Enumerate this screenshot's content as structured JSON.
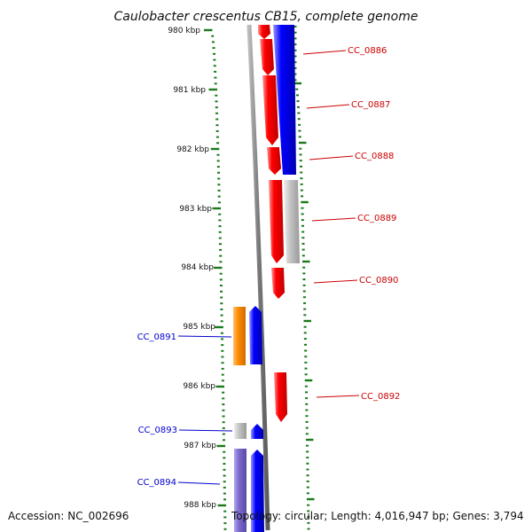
{
  "title": "Caulobacter crescentus CB15, complete genome",
  "footer": {
    "accession": "Accession: NC_002696",
    "summary": "Topology: circular; Length: 4,016,947 bp; Genes: 3,794"
  },
  "colors": {
    "forward_gene": "#ff0000",
    "reverse_gene": "#0000ff",
    "other_gene": "#c0c0c0",
    "orange_gene": "#ff8c00",
    "purple_gene": "#7b68cc",
    "backbone": "#808080",
    "tick": "#1a7a1a",
    "right_label": "#cc0000",
    "left_label": "#0000cc"
  },
  "ticks": [
    {
      "label": "980 kbp"
    },
    {
      "label": "981 kbp"
    },
    {
      "label": "982 kbp"
    },
    {
      "label": "983 kbp"
    },
    {
      "label": "984 kbp"
    },
    {
      "label": "985 kbp"
    },
    {
      "label": "986 kbp"
    },
    {
      "label": "987 kbp"
    },
    {
      "label": "988 kbp"
    }
  ],
  "right_labels": [
    {
      "name": "CC_0886"
    },
    {
      "name": "CC_0887"
    },
    {
      "name": "CC_0888"
    },
    {
      "name": "CC_0889"
    },
    {
      "name": "CC_0890"
    },
    {
      "name": "CC_0892"
    }
  ],
  "left_labels": [
    {
      "name": "CC_0891"
    },
    {
      "name": "CC_0893"
    },
    {
      "name": "CC_0894"
    }
  ]
}
